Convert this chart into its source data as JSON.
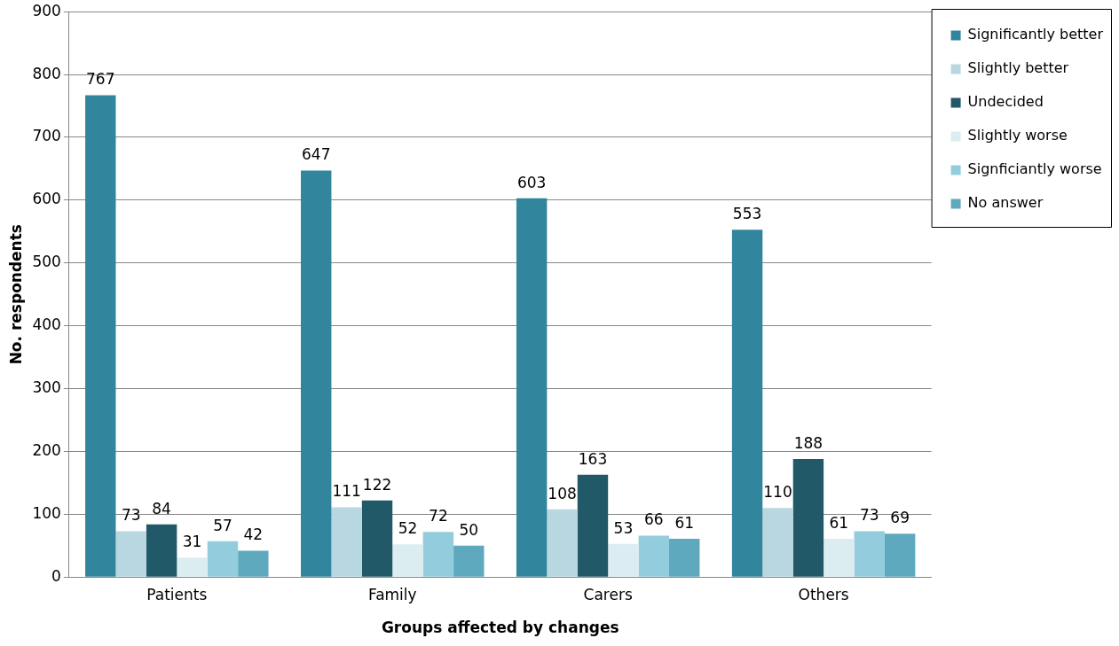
{
  "chart_data": {
    "type": "bar",
    "xlabel": "Groups affected by changes",
    "ylabel": "No. respondents",
    "categories": [
      "Patients",
      "Family",
      "Carers",
      "Others"
    ],
    "series": [
      {
        "name": "Significantly better",
        "color": "#31859c",
        "values": [
          767,
          647,
          603,
          553
        ]
      },
      {
        "name": "Slightly better",
        "color": "#b9d7e1",
        "values": [
          73,
          111,
          108,
          110
        ]
      },
      {
        "name": "Undecided",
        "color": "#215968",
        "values": [
          84,
          122,
          163,
          188
        ]
      },
      {
        "name": "Slightly worse",
        "color": "#dcedf2",
        "values": [
          31,
          52,
          53,
          61
        ]
      },
      {
        "name": "Signficiantly worse",
        "color": "#93cddd",
        "values": [
          57,
          72,
          66,
          73
        ]
      },
      {
        "name": "No answer",
        "color": "#5fa9bf",
        "values": [
          42,
          50,
          61,
          69
        ]
      }
    ],
    "ylim": [
      0,
      900
    ],
    "yticks": [
      0,
      100,
      200,
      300,
      400,
      500,
      600,
      700,
      800,
      900
    ],
    "grid": "y",
    "legend": "top right",
    "data_labels": true
  }
}
